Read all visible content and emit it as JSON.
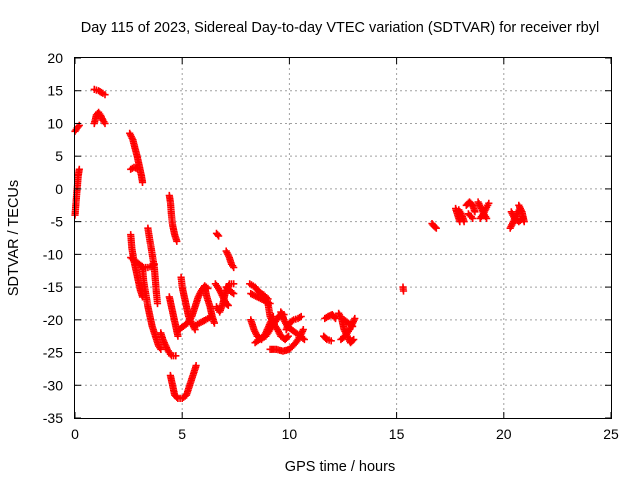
{
  "chart_data": {
    "type": "scatter",
    "title": "Day 115 of 2023, Sidereal Day-to-day VTEC variation (SDTVAR) for receiver rbyl",
    "xlabel": "GPS time / hours",
    "ylabel": "SDTVAR / TECUs",
    "xlim": [
      0,
      25
    ],
    "ylim": [
      -35,
      20
    ],
    "xticks": [
      "0",
      "5",
      "10",
      "15",
      "20",
      "25"
    ],
    "yticks": [
      "20",
      "15",
      "10",
      "5",
      "0",
      "-5",
      "-10",
      "-15",
      "-20",
      "-25",
      "-30",
      "-35"
    ],
    "grid": true,
    "marker": "plus",
    "color": "#ff0000",
    "segments": [
      [
        [
          0.0,
          -4.0
        ],
        [
          0.05,
          -2.0
        ],
        [
          0.1,
          0.0
        ],
        [
          0.15,
          2.0
        ],
        [
          0.2,
          3.0
        ]
      ],
      [
        [
          0.0,
          8.8
        ],
        [
          0.1,
          9.3
        ],
        [
          0.2,
          9.7
        ]
      ],
      [
        [
          0.9,
          15.2
        ],
        [
          1.1,
          15.0
        ],
        [
          1.3,
          14.6
        ],
        [
          1.4,
          14.4
        ]
      ],
      [
        [
          0.9,
          10.0
        ],
        [
          1.0,
          11.3
        ],
        [
          1.1,
          11.7
        ],
        [
          1.2,
          11.2
        ],
        [
          1.3,
          10.5
        ],
        [
          1.4,
          10.0
        ]
      ],
      [
        [
          2.55,
          8.5
        ],
        [
          2.7,
          7.5
        ],
        [
          2.8,
          6.2
        ],
        [
          2.9,
          5.0
        ],
        [
          3.0,
          3.5
        ],
        [
          3.1,
          2.0
        ],
        [
          3.15,
          1.0
        ]
      ],
      [
        [
          2.6,
          3.0
        ],
        [
          2.75,
          3.3
        ],
        [
          2.9,
          3.1
        ]
      ],
      [
        [
          2.6,
          -7.0
        ],
        [
          2.65,
          -9.0
        ],
        [
          2.75,
          -11.0
        ],
        [
          2.85,
          -12.5
        ],
        [
          2.95,
          -14.0
        ],
        [
          3.05,
          -15.5
        ],
        [
          3.15,
          -16.5
        ]
      ],
      [
        [
          2.6,
          -10.5
        ],
        [
          2.8,
          -11.0
        ],
        [
          3.0,
          -11.5
        ],
        [
          3.2,
          -12.0
        ],
        [
          3.4,
          -12.0
        ],
        [
          3.6,
          -11.8
        ],
        [
          3.7,
          -11.5
        ]
      ],
      [
        [
          3.4,
          -6.0
        ],
        [
          3.5,
          -8.0
        ],
        [
          3.6,
          -10.0
        ],
        [
          3.7,
          -12.0
        ],
        [
          3.75,
          -14.0
        ],
        [
          3.8,
          -16.0
        ],
        [
          3.85,
          -17.5
        ]
      ],
      [
        [
          3.15,
          -12.0
        ],
        [
          3.2,
          -14.0
        ],
        [
          3.3,
          -16.0
        ],
        [
          3.4,
          -18.0
        ],
        [
          3.5,
          -19.5
        ],
        [
          3.6,
          -21.0
        ],
        [
          3.7,
          -22.0
        ],
        [
          3.8,
          -23.0
        ],
        [
          3.9,
          -24.0
        ],
        [
          4.0,
          -24.5
        ]
      ],
      [
        [
          4.0,
          -22.0
        ],
        [
          4.1,
          -23.0
        ],
        [
          4.3,
          -24.5
        ],
        [
          4.5,
          -25.5
        ],
        [
          4.7,
          -25.5
        ]
      ],
      [
        [
          4.4,
          -1.0
        ],
        [
          4.45,
          -2.0
        ],
        [
          4.5,
          -4.0
        ],
        [
          4.55,
          -5.5
        ],
        [
          4.65,
          -7.0
        ],
        [
          4.75,
          -8.0
        ]
      ],
      [
        [
          4.4,
          -16.5
        ],
        [
          4.5,
          -18.0
        ],
        [
          4.6,
          -19.5
        ],
        [
          4.7,
          -21.0
        ],
        [
          4.8,
          -22.5
        ]
      ],
      [
        [
          4.45,
          -28.5
        ],
        [
          4.55,
          -30.0
        ],
        [
          4.65,
          -31.5
        ],
        [
          4.8,
          -32.0
        ],
        [
          5.0,
          -32.0
        ],
        [
          5.2,
          -31.5
        ],
        [
          5.4,
          -29.5
        ],
        [
          5.55,
          -28.0
        ],
        [
          5.65,
          -27.0
        ]
      ],
      [
        [
          4.95,
          -13.5
        ],
        [
          5.0,
          -15.0
        ],
        [
          5.1,
          -16.5
        ],
        [
          5.2,
          -18.0
        ],
        [
          5.3,
          -19.5
        ],
        [
          5.45,
          -20.5
        ],
        [
          5.6,
          -21.5
        ]
      ],
      [
        [
          4.85,
          -21.5
        ],
        [
          5.05,
          -21.0
        ],
        [
          5.25,
          -20.5
        ],
        [
          5.45,
          -19.5
        ],
        [
          5.6,
          -18.0
        ],
        [
          5.75,
          -16.5
        ],
        [
          5.9,
          -15.5
        ],
        [
          6.05,
          -14.8
        ],
        [
          6.2,
          -15.2
        ]
      ],
      [
        [
          5.55,
          -21.0
        ],
        [
          5.8,
          -20.5
        ],
        [
          6.1,
          -20.0
        ],
        [
          6.35,
          -19.5
        ]
      ],
      [
        [
          6.05,
          -15.0
        ],
        [
          6.15,
          -16.5
        ],
        [
          6.3,
          -18.0
        ],
        [
          6.4,
          -19.5
        ],
        [
          6.5,
          -20.5
        ]
      ],
      [
        [
          6.55,
          -14.5
        ],
        [
          6.75,
          -15.5
        ],
        [
          6.9,
          -16.5
        ],
        [
          7.05,
          -17.5
        ],
        [
          7.15,
          -17.8
        ]
      ],
      [
        [
          6.6,
          -6.8
        ],
        [
          6.7,
          -7.2
        ]
      ],
      [
        [
          6.6,
          -18.0
        ],
        [
          6.75,
          -18.8
        ],
        [
          6.9,
          -17.5
        ],
        [
          7.0,
          -16.0
        ],
        [
          7.2,
          -14.5
        ],
        [
          7.4,
          -14.5
        ]
      ],
      [
        [
          7.05,
          -9.5
        ],
        [
          7.2,
          -10.5
        ],
        [
          7.3,
          -11.5
        ],
        [
          7.4,
          -12.0
        ]
      ],
      [
        [
          7.05,
          -15.0
        ],
        [
          7.2,
          -15.5
        ],
        [
          7.4,
          -16.0
        ]
      ],
      [
        [
          8.15,
          -14.5
        ],
        [
          8.4,
          -15.0
        ],
        [
          8.6,
          -15.8
        ],
        [
          8.8,
          -16.2
        ],
        [
          9.0,
          -16.8
        ]
      ],
      [
        [
          8.2,
          -16.0
        ],
        [
          8.5,
          -16.5
        ],
        [
          8.8,
          -17.0
        ],
        [
          9.1,
          -17.5
        ]
      ],
      [
        [
          8.2,
          -20.0
        ],
        [
          8.35,
          -21.5
        ],
        [
          8.5,
          -22.5
        ],
        [
          8.7,
          -23.0
        ],
        [
          8.9,
          -22.0
        ],
        [
          9.1,
          -20.5
        ],
        [
          9.25,
          -19.5
        ]
      ],
      [
        [
          8.4,
          -23.5
        ],
        [
          8.6,
          -23.0
        ],
        [
          8.9,
          -22.5
        ],
        [
          9.1,
          -21.5
        ],
        [
          9.3,
          -20.5
        ],
        [
          9.5,
          -19.5
        ],
        [
          9.65,
          -19.0
        ],
        [
          9.75,
          -19.2
        ]
      ],
      [
        [
          9.0,
          -17.5
        ],
        [
          9.1,
          -19.5
        ],
        [
          9.25,
          -20.5
        ],
        [
          9.45,
          -21.5
        ],
        [
          9.6,
          -22.5
        ],
        [
          9.8,
          -23.0
        ],
        [
          9.95,
          -22.5
        ]
      ],
      [
        [
          9.1,
          -24.5
        ],
        [
          9.4,
          -24.5
        ],
        [
          9.7,
          -24.8
        ],
        [
          10.0,
          -24.5
        ],
        [
          10.3,
          -23.5
        ],
        [
          10.5,
          -22.5
        ],
        [
          10.65,
          -21.5
        ]
      ],
      [
        [
          9.6,
          -18.8
        ],
        [
          9.75,
          -20.0
        ],
        [
          9.9,
          -21.0
        ],
        [
          10.1,
          -21.5
        ],
        [
          10.3,
          -22.0
        ],
        [
          10.5,
          -22.5
        ],
        [
          10.7,
          -23.0
        ]
      ],
      [
        [
          9.85,
          -21.5
        ],
        [
          10.0,
          -20.5
        ],
        [
          10.2,
          -20.0
        ],
        [
          10.4,
          -19.8
        ],
        [
          10.55,
          -19.5
        ]
      ],
      [
        [
          11.65,
          -19.8
        ],
        [
          11.8,
          -19.5
        ],
        [
          12.0,
          -19.2
        ],
        [
          12.15,
          -19.8
        ]
      ],
      [
        [
          11.6,
          -22.5
        ],
        [
          11.75,
          -23.0
        ],
        [
          11.95,
          -23.2
        ]
      ],
      [
        [
          12.3,
          -19.0
        ],
        [
          12.45,
          -20.0
        ],
        [
          12.55,
          -21.5
        ],
        [
          12.7,
          -22.5
        ],
        [
          12.85,
          -23.5
        ],
        [
          13.0,
          -23.0
        ]
      ],
      [
        [
          12.4,
          -23.0
        ],
        [
          12.6,
          -22.5
        ],
        [
          12.8,
          -21.5
        ],
        [
          12.95,
          -20.5
        ],
        [
          13.05,
          -19.8
        ]
      ],
      [
        [
          12.55,
          -20.0
        ],
        [
          12.75,
          -20.5
        ],
        [
          12.95,
          -21.0
        ]
      ],
      [
        [
          15.3,
          -15.0
        ],
        [
          15.32,
          -15.6
        ]
      ],
      [
        [
          16.65,
          -5.3
        ],
        [
          16.75,
          -5.7
        ],
        [
          16.85,
          -6.0
        ]
      ],
      [
        [
          17.75,
          -3.0
        ],
        [
          17.85,
          -4.0
        ],
        [
          17.95,
          -5.0
        ]
      ],
      [
        [
          17.9,
          -3.2
        ],
        [
          18.05,
          -4.0
        ],
        [
          18.15,
          -5.0
        ]
      ],
      [
        [
          18.25,
          -2.5
        ],
        [
          18.4,
          -2.0
        ],
        [
          18.55,
          -2.5
        ],
        [
          18.65,
          -3.5
        ]
      ],
      [
        [
          18.35,
          -3.8
        ],
        [
          18.55,
          -4.5
        ]
      ],
      [
        [
          18.8,
          -2.0
        ],
        [
          18.95,
          -3.0
        ],
        [
          19.1,
          -4.0
        ],
        [
          19.2,
          -4.5
        ]
      ],
      [
        [
          18.9,
          -4.5
        ],
        [
          19.05,
          -3.8
        ],
        [
          19.2,
          -2.8
        ],
        [
          19.3,
          -2.2
        ]
      ],
      [
        [
          20.3,
          -6.0
        ],
        [
          20.45,
          -5.0
        ],
        [
          20.6,
          -4.0
        ],
        [
          20.75,
          -3.0
        ]
      ],
      [
        [
          20.35,
          -3.5
        ],
        [
          20.5,
          -4.5
        ],
        [
          20.7,
          -5.0
        ],
        [
          20.9,
          -4.5
        ]
      ],
      [
        [
          20.7,
          -2.5
        ],
        [
          20.85,
          -3.5
        ],
        [
          20.95,
          -5.0
        ]
      ]
    ]
  }
}
